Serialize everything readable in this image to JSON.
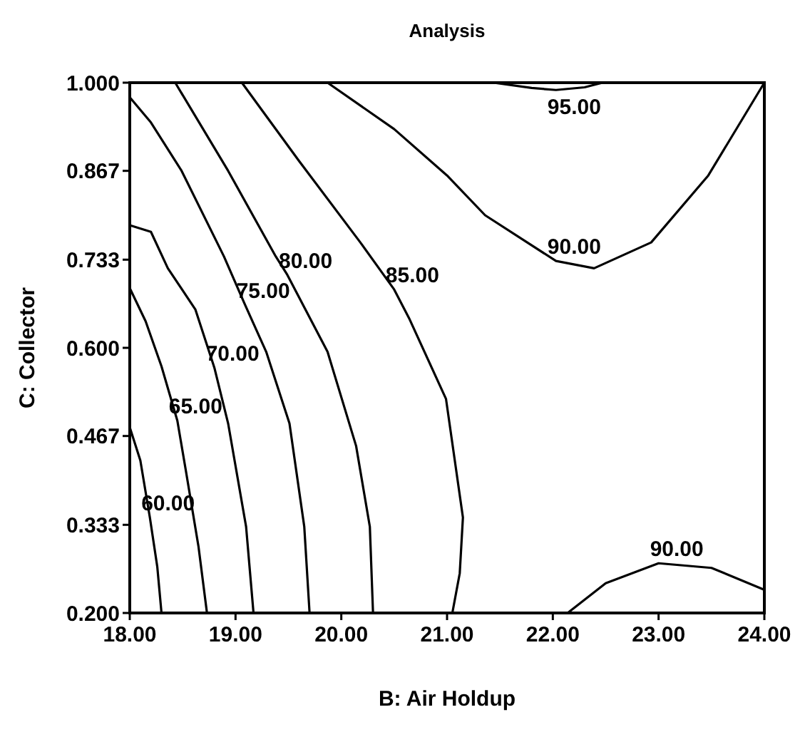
{
  "chart_data": {
    "type": "line",
    "title": "Analysis",
    "xlabel": "B: Air Holdup",
    "ylabel": "C: Collector",
    "xlim": [
      18,
      24
    ],
    "ylim": [
      0.2,
      1
    ],
    "xticks": [
      {
        "value": 18,
        "label": "18.00"
      },
      {
        "value": 19,
        "label": "19.00"
      },
      {
        "value": 20,
        "label": "20.00"
      },
      {
        "value": 21,
        "label": "21.00"
      },
      {
        "value": 22,
        "label": "22.00"
      },
      {
        "value": 23,
        "label": "23.00"
      },
      {
        "value": 24,
        "label": "24.00"
      }
    ],
    "yticks": [
      {
        "value": 0.2,
        "label": "0.200"
      },
      {
        "value": 0.333,
        "label": "0.333"
      },
      {
        "value": 0.467,
        "label": "0.467"
      },
      {
        "value": 0.6,
        "label": "0.600"
      },
      {
        "value": 0.733,
        "label": "0.733"
      },
      {
        "value": 0.867,
        "label": "0.867"
      },
      {
        "value": 1,
        "label": "1.000"
      }
    ],
    "grid": false,
    "marker": "none",
    "line_style": "solid",
    "series": [
      {
        "color": "#000000",
        "x": [
          18,
          18.1,
          18.19,
          18.26,
          18.3
        ],
        "values": [
          0.48,
          0.43,
          0.344,
          0.27,
          0.2
        ]
      },
      {
        "color": "#000000",
        "x": [
          18,
          18.15,
          18.3,
          18.45,
          18.53,
          18.65,
          18.73
        ],
        "values": [
          0.69,
          0.64,
          0.572,
          0.49,
          0.415,
          0.3,
          0.2
        ]
      },
      {
        "color": "#000000",
        "x": [
          18,
          18.2,
          18.36,
          18.62,
          18.8,
          18.93,
          19.1,
          19.17
        ],
        "values": [
          0.785,
          0.775,
          0.72,
          0.658,
          0.57,
          0.486,
          0.33,
          0.2
        ]
      },
      {
        "color": "#000000",
        "x": [
          18,
          18.2,
          18.49,
          18.89,
          19.09,
          19.29,
          19.51,
          19.65,
          19.7
        ],
        "values": [
          0.978,
          0.94,
          0.867,
          0.738,
          0.665,
          0.594,
          0.486,
          0.33,
          0.2
        ]
      },
      {
        "color": "#000000",
        "x": [
          18.43,
          18.93,
          19.38,
          19.49,
          19.87,
          20.14,
          20.27,
          20.3
        ],
        "values": [
          1,
          0.867,
          0.738,
          0.71,
          0.594,
          0.452,
          0.33,
          0.2
        ]
      },
      {
        "color": "#000000",
        "x": [
          19.06,
          19.6,
          20.18,
          20.5,
          20.64,
          20.99,
          21.15,
          21.12,
          21.05
        ],
        "values": [
          1,
          0.882,
          0.759,
          0.688,
          0.645,
          0.523,
          0.344,
          0.26,
          0.2
        ]
      },
      {
        "color": "#000000",
        "x": [
          19.87,
          20.5,
          21.0,
          21.36,
          22.03,
          22.39,
          22.93,
          23.47,
          24
        ],
        "values": [
          1,
          0.93,
          0.86,
          0.8,
          0.731,
          0.72,
          0.759,
          0.86,
          1
        ]
      },
      {
        "color": "#000000",
        "x": [
          21.44,
          21.8,
          22.03,
          22.3,
          22.47
        ],
        "values": [
          1,
          0.992,
          0.989,
          0.993,
          1
        ]
      },
      {
        "color": "#000000",
        "x": [
          22.14,
          22.5,
          23.0,
          23.5,
          24
        ],
        "values": [
          0.2,
          0.245,
          0.275,
          0.268,
          0.235
        ]
      }
    ],
    "annotations": [
      {
        "text": "60.00",
        "x": 18.19,
        "y": 0.344
      },
      {
        "text": "65.00",
        "x": 18.45,
        "y": 0.49
      },
      {
        "text": "70.00",
        "x": 18.8,
        "y": 0.57
      },
      {
        "text": "75.00",
        "x": 19.09,
        "y": 0.665
      },
      {
        "text": "80.00",
        "x": 19.49,
        "y": 0.71
      },
      {
        "text": "85.00",
        "x": 20.5,
        "y": 0.688
      },
      {
        "text": "90.00",
        "x": 22.03,
        "y": 0.731
      },
      {
        "text": "95.00",
        "x": 22.03,
        "y": 0.989
      },
      {
        "text": "90.00",
        "x": 23.0,
        "y": 0.275
      }
    ]
  }
}
